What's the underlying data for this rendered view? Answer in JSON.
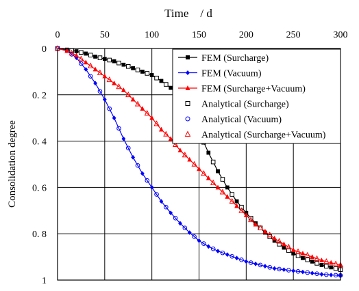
{
  "chart_data": {
    "type": "line",
    "xlabel": "Time    / d",
    "ylabel": "Consolidation degree",
    "xlim": [
      0,
      300
    ],
    "ylim": [
      0,
      1
    ],
    "y_axis_inverted": true,
    "x_axis_position": "top",
    "grid": true,
    "legend_position": "top-right",
    "x_ticks": [
      "0",
      "50",
      "100",
      "150",
      "200",
      "250",
      "300"
    ],
    "y_ticks": [
      "0",
      "0. 2",
      "0. 4",
      "0. 6",
      "0. 8",
      "1"
    ],
    "x_tick_values": [
      0,
      50,
      100,
      150,
      200,
      250,
      300
    ],
    "y_tick_values": [
      0,
      0.2,
      0.4,
      0.6,
      0.8,
      1.0
    ],
    "series": [
      {
        "name": "FEM (Surcharge)",
        "color": "#000000",
        "marker": "filled-square",
        "x": [
          0,
          10,
          20,
          30,
          40,
          50,
          60,
          70,
          80,
          90,
          100,
          110,
          120,
          130,
          140,
          150,
          160,
          170,
          180,
          190,
          200,
          210,
          220,
          230,
          240,
          250,
          260,
          270,
          280,
          290,
          300
        ],
        "y": [
          0,
          0.005,
          0.012,
          0.022,
          0.035,
          0.045,
          0.055,
          0.07,
          0.085,
          0.1,
          0.115,
          0.14,
          0.17,
          0.21,
          0.28,
          0.36,
          0.45,
          0.53,
          0.6,
          0.66,
          0.71,
          0.755,
          0.795,
          0.83,
          0.86,
          0.885,
          0.905,
          0.92,
          0.935,
          0.945,
          0.955
        ]
      },
      {
        "name": "FEM (Vacuum)",
        "color": "#0000ff",
        "marker": "filled-diamond",
        "x": [
          0,
          10,
          20,
          30,
          40,
          50,
          60,
          70,
          80,
          90,
          100,
          110,
          120,
          130,
          140,
          150,
          160,
          170,
          180,
          190,
          200,
          210,
          220,
          230,
          240,
          250,
          260,
          270,
          280,
          290,
          300
        ],
        "y": [
          0,
          0.01,
          0.04,
          0.09,
          0.15,
          0.22,
          0.3,
          0.39,
          0.47,
          0.54,
          0.6,
          0.66,
          0.71,
          0.755,
          0.795,
          0.83,
          0.855,
          0.875,
          0.89,
          0.905,
          0.92,
          0.93,
          0.94,
          0.95,
          0.955,
          0.96,
          0.965,
          0.97,
          0.975,
          0.978,
          0.98
        ]
      },
      {
        "name": "FEM (Surcharge+Vacuum)",
        "color": "#ff0000",
        "marker": "filled-triangle",
        "x": [
          0,
          10,
          20,
          30,
          40,
          50,
          60,
          70,
          80,
          90,
          100,
          110,
          120,
          130,
          140,
          150,
          160,
          170,
          180,
          190,
          200,
          210,
          220,
          230,
          240,
          250,
          260,
          270,
          280,
          290,
          300
        ],
        "y": [
          0,
          0.01,
          0.03,
          0.06,
          0.09,
          0.12,
          0.15,
          0.18,
          0.22,
          0.26,
          0.3,
          0.35,
          0.39,
          0.44,
          0.48,
          0.52,
          0.56,
          0.6,
          0.64,
          0.68,
          0.72,
          0.76,
          0.79,
          0.82,
          0.845,
          0.87,
          0.885,
          0.9,
          0.915,
          0.925,
          0.935
        ]
      },
      {
        "name": "Analytical (Surcharge)",
        "color": "#000000",
        "marker": "open-square",
        "x": [
          0,
          10,
          20,
          30,
          40,
          50,
          60,
          70,
          80,
          90,
          100,
          110,
          120,
          130,
          140,
          150,
          160,
          170,
          180,
          190,
          200,
          210,
          220,
          230,
          240,
          250,
          260,
          270,
          280,
          290,
          300
        ],
        "y": [
          0,
          0.005,
          0.012,
          0.022,
          0.035,
          0.045,
          0.055,
          0.07,
          0.085,
          0.1,
          0.115,
          0.14,
          0.17,
          0.21,
          0.28,
          0.36,
          0.45,
          0.53,
          0.6,
          0.66,
          0.71,
          0.755,
          0.795,
          0.83,
          0.86,
          0.885,
          0.905,
          0.92,
          0.935,
          0.945,
          0.955
        ]
      },
      {
        "name": "Analytical (Vacuum)",
        "color": "#0000ff",
        "marker": "open-circle",
        "x": [
          0,
          10,
          20,
          30,
          40,
          50,
          60,
          70,
          80,
          90,
          100,
          110,
          120,
          130,
          140,
          150,
          160,
          170,
          180,
          190,
          200,
          210,
          220,
          230,
          240,
          250,
          260,
          270,
          280,
          290,
          300
        ],
        "y": [
          0,
          0.01,
          0.04,
          0.09,
          0.15,
          0.22,
          0.3,
          0.39,
          0.47,
          0.54,
          0.6,
          0.66,
          0.71,
          0.755,
          0.795,
          0.83,
          0.855,
          0.875,
          0.89,
          0.905,
          0.92,
          0.93,
          0.94,
          0.95,
          0.955,
          0.96,
          0.965,
          0.97,
          0.975,
          0.978,
          0.98
        ]
      },
      {
        "name": "Analytical (Surcharge+Vacuum)",
        "color": "#ff0000",
        "marker": "open-triangle",
        "x": [
          0,
          10,
          20,
          30,
          40,
          50,
          60,
          70,
          80,
          90,
          100,
          110,
          120,
          130,
          140,
          150,
          160,
          170,
          180,
          190,
          200,
          210,
          220,
          230,
          240,
          250,
          260,
          270,
          280,
          290,
          300
        ],
        "y": [
          0,
          0.01,
          0.03,
          0.06,
          0.09,
          0.12,
          0.15,
          0.18,
          0.22,
          0.26,
          0.3,
          0.35,
          0.39,
          0.44,
          0.48,
          0.52,
          0.56,
          0.6,
          0.64,
          0.68,
          0.72,
          0.76,
          0.79,
          0.82,
          0.845,
          0.87,
          0.885,
          0.9,
          0.915,
          0.925,
          0.935
        ]
      }
    ]
  }
}
